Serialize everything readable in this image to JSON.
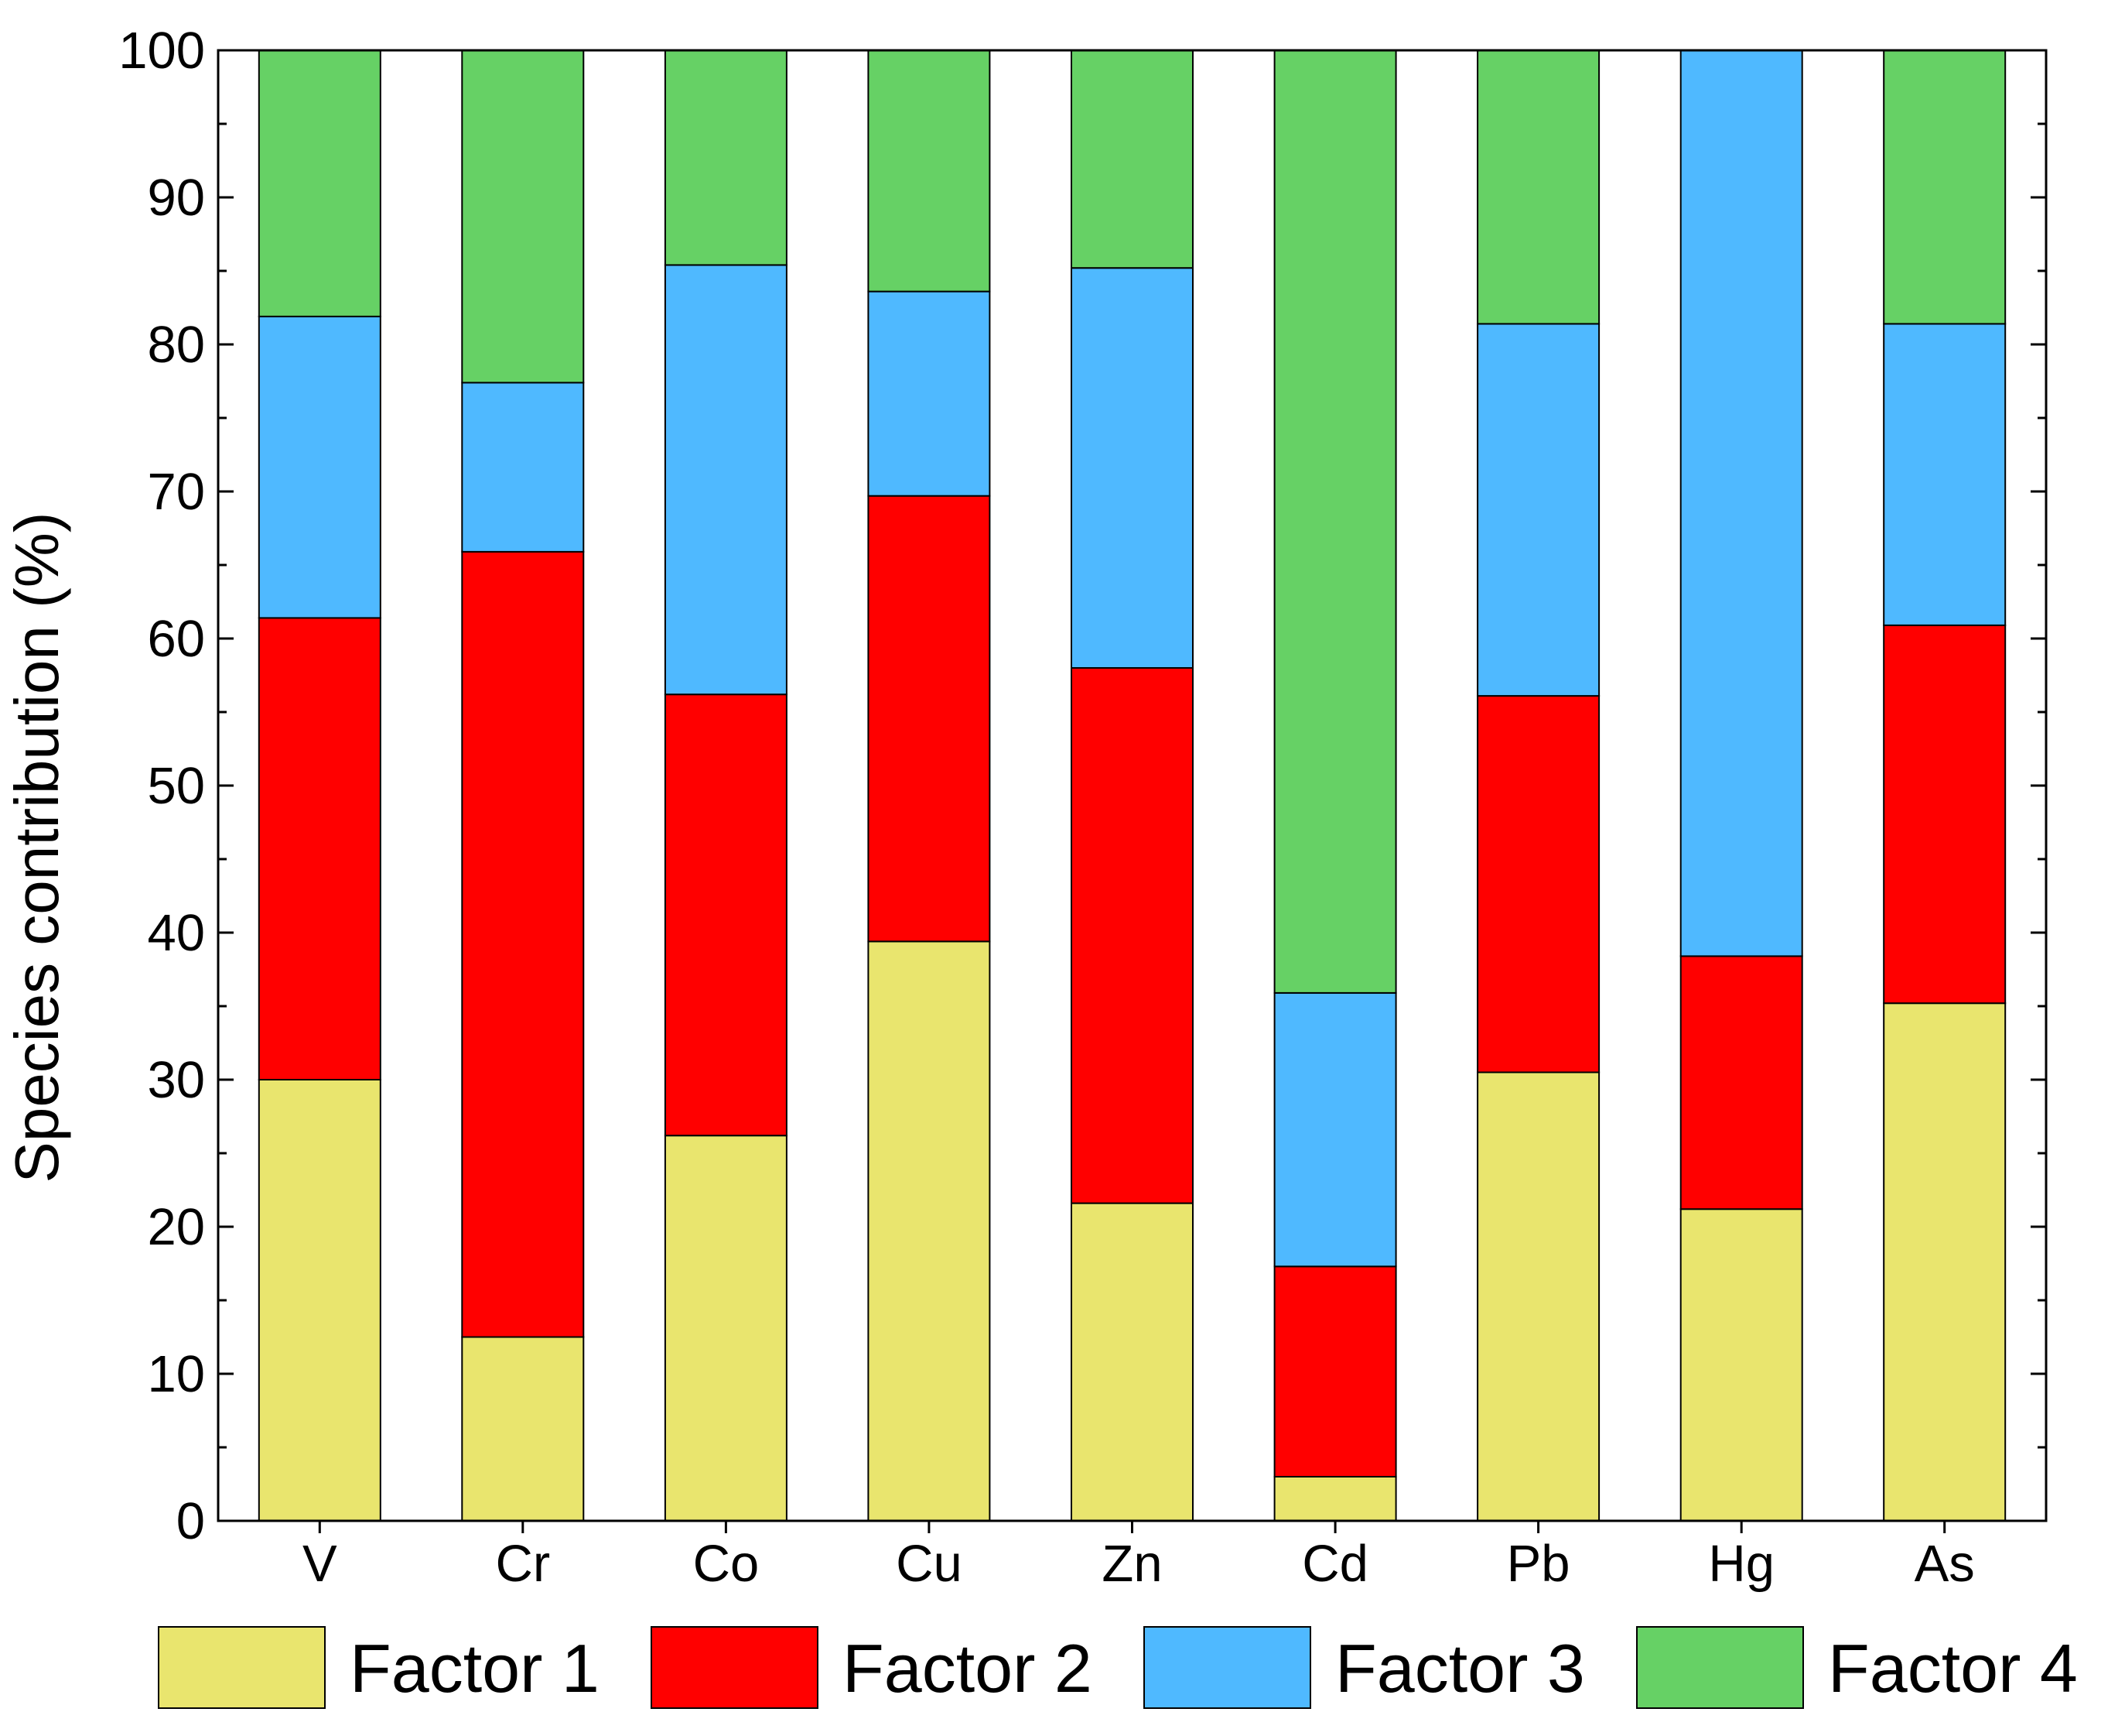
{
  "chart_data": {
    "type": "bar",
    "stacked": true,
    "title": "",
    "xlabel": "",
    "ylabel": "Species contribution (%)",
    "ylim": [
      0,
      100
    ],
    "yticks": [
      0,
      10,
      20,
      30,
      40,
      50,
      60,
      70,
      80,
      90,
      100
    ],
    "categories": [
      "V",
      "Cr",
      "Co",
      "Cu",
      "Zn",
      "Cd",
      "Pb",
      "Hg",
      "As"
    ],
    "series": [
      {
        "name": "Factor 1",
        "color": "#e9e56e",
        "values": [
          30.0,
          12.5,
          26.2,
          39.4,
          21.6,
          3.0,
          30.5,
          21.2,
          35.2
        ]
      },
      {
        "name": "Factor 2",
        "color": "#ff0000",
        "values": [
          31.4,
          53.4,
          30.0,
          30.3,
          36.4,
          14.3,
          25.6,
          17.2,
          25.7
        ]
      },
      {
        "name": "Factor 3",
        "color": "#4fb9ff",
        "values": [
          20.5,
          11.5,
          29.2,
          13.9,
          27.2,
          18.6,
          25.3,
          61.6,
          20.5
        ]
      },
      {
        "name": "Factor 4",
        "color": "#66d165",
        "values": [
          18.1,
          22.6,
          14.6,
          16.4,
          14.8,
          64.1,
          18.6,
          0.0,
          18.6
        ]
      }
    ],
    "legend_position": "bottom",
    "grid": false
  }
}
